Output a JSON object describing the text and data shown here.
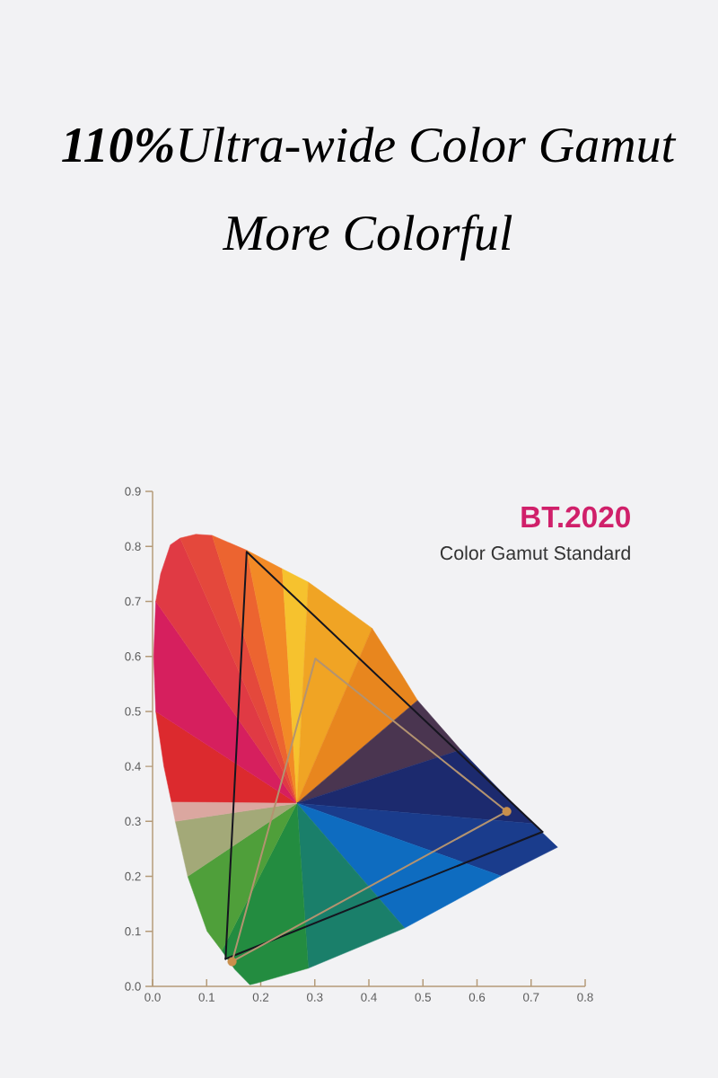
{
  "chart_data": {
    "type": "line",
    "title": "**110%**Ultra-wide Color Gamut",
    "subtitle": "More Colorful",
    "annotations": [
      "BT.2020",
      "Color Gamut Standard"
    ],
    "xlim": [
      0,
      0.8
    ],
    "xticks": [
      {
        "value": 0,
        "label": "0.0"
      },
      0.1,
      0.2,
      0.3,
      0.4,
      0.5,
      0.6,
      0.7,
      0.8
    ],
    "ylim": [
      0,
      0.9
    ],
    "yticks": [
      {
        "value": 0,
        "label": "0.0"
      },
      0.1,
      0.2,
      0.3,
      0.4,
      0.5,
      0.6,
      0.7,
      0.8,
      0.9
    ],
    "series": [
      {
        "type": "area",
        "color": "#dc2a2e",
        "x": [
          0.267,
          0.035,
          0.021,
          0.006
        ],
        "values": [
          0.333,
          0.335,
          0.4,
          0.5
        ]
      },
      {
        "type": "area",
        "color": "#d61f5e",
        "x": [
          0.267,
          0.006,
          0.002,
          0.006
        ],
        "values": [
          0.333,
          0.5,
          0.6,
          0.7
        ]
      },
      {
        "type": "area",
        "color": "#e03a44",
        "x": [
          0.267,
          0.006,
          0.015,
          0.033,
          0.051
        ],
        "values": [
          0.333,
          0.7,
          0.75,
          0.803,
          0.815
        ]
      },
      {
        "type": "area",
        "color": "#e4483c",
        "x": [
          0.267,
          0.051,
          0.08,
          0.11
        ],
        "values": [
          0.333,
          0.815,
          0.822,
          0.82
        ]
      },
      {
        "type": "area",
        "color": "#ec6430",
        "x": [
          0.267,
          0.11,
          0.174
        ],
        "values": [
          0.333,
          0.82,
          0.793
        ]
      },
      {
        "type": "area",
        "color": "#f28a26",
        "x": [
          0.267,
          0.174,
          0.24
        ],
        "values": [
          0.333,
          0.793,
          0.759
        ]
      },
      {
        "type": "area",
        "color": "#f6c22e",
        "x": [
          0.267,
          0.24,
          0.288
        ],
        "values": [
          0.333,
          0.759,
          0.735
        ]
      },
      {
        "type": "area",
        "color": "#f0a424",
        "x": [
          0.267,
          0.288,
          0.35,
          0.406
        ],
        "values": [
          0.333,
          0.735,
          0.691,
          0.651
        ]
      },
      {
        "type": "area",
        "color": "#e8861e",
        "x": [
          0.267,
          0.406,
          0.46,
          0.49
        ],
        "values": [
          0.333,
          0.651,
          0.568,
          0.52
        ]
      },
      {
        "type": "area",
        "color": "#4a3550",
        "x": [
          0.267,
          0.49,
          0.57
        ],
        "values": [
          0.333,
          0.52,
          0.43
        ]
      },
      {
        "type": "area",
        "color": "#1c2a6e",
        "x": [
          0.267,
          0.57,
          0.614,
          0.703
        ],
        "values": [
          0.333,
          0.43,
          0.385,
          0.296
        ]
      },
      {
        "type": "area",
        "color": "#1a3c8c",
        "x": [
          0.267,
          0.703,
          0.749,
          0.644
        ],
        "values": [
          0.333,
          0.296,
          0.253,
          0.201
        ]
      },
      {
        "type": "area",
        "color": "#0e6cc0",
        "x": [
          0.267,
          0.644,
          0.466
        ],
        "values": [
          0.333,
          0.201,
          0.106
        ]
      },
      {
        "type": "area",
        "color": "#1a7f6a",
        "x": [
          0.267,
          0.466,
          0.288
        ],
        "values": [
          0.333,
          0.106,
          0.033
        ]
      },
      {
        "type": "area",
        "color": "#238c40",
        "x": [
          0.267,
          0.288,
          0.193,
          0.18,
          0.152,
          0.128
        ],
        "values": [
          0.333,
          0.033,
          0.006,
          0.003,
          0.031,
          0.065
        ]
      },
      {
        "type": "area",
        "color": "#4f9f3a",
        "x": [
          0.267,
          0.128,
          0.101,
          0.065
        ],
        "values": [
          0.333,
          0.065,
          0.1,
          0.2
        ]
      },
      {
        "type": "area",
        "color": "#a3a978",
        "x": [
          0.267,
          0.065,
          0.042
        ],
        "values": [
          0.333,
          0.2,
          0.3
        ]
      },
      {
        "type": "area",
        "color": "#dba7a0",
        "x": [
          0.267,
          0.042,
          0.035
        ],
        "values": [
          0.333,
          0.3,
          0.335
        ]
      },
      {
        "color": "#15151f",
        "x": [
          0.135,
          0.174,
          0.721
        ],
        "values": [
          0.05,
          0.79,
          0.281
        ]
      },
      {
        "color": "#15151f",
        "x": [
          0.135,
          0.721
        ],
        "values": [
          0.05,
          0.281
        ]
      },
      {
        "color": "#b39370",
        "x": [
          0.147,
          0.301,
          0.655
        ],
        "values": [
          0.045,
          0.596,
          0.318
        ]
      },
      {
        "color": "#b39370",
        "x": [
          0.147,
          0.655
        ],
        "values": [
          0.045,
          0.318
        ]
      },
      {
        "type": "scatter",
        "color": "#c98f4c",
        "marker": "circle",
        "x": [
          0.655,
          0.147
        ],
        "values": [
          0.318,
          0.045
        ]
      }
    ]
  }
}
